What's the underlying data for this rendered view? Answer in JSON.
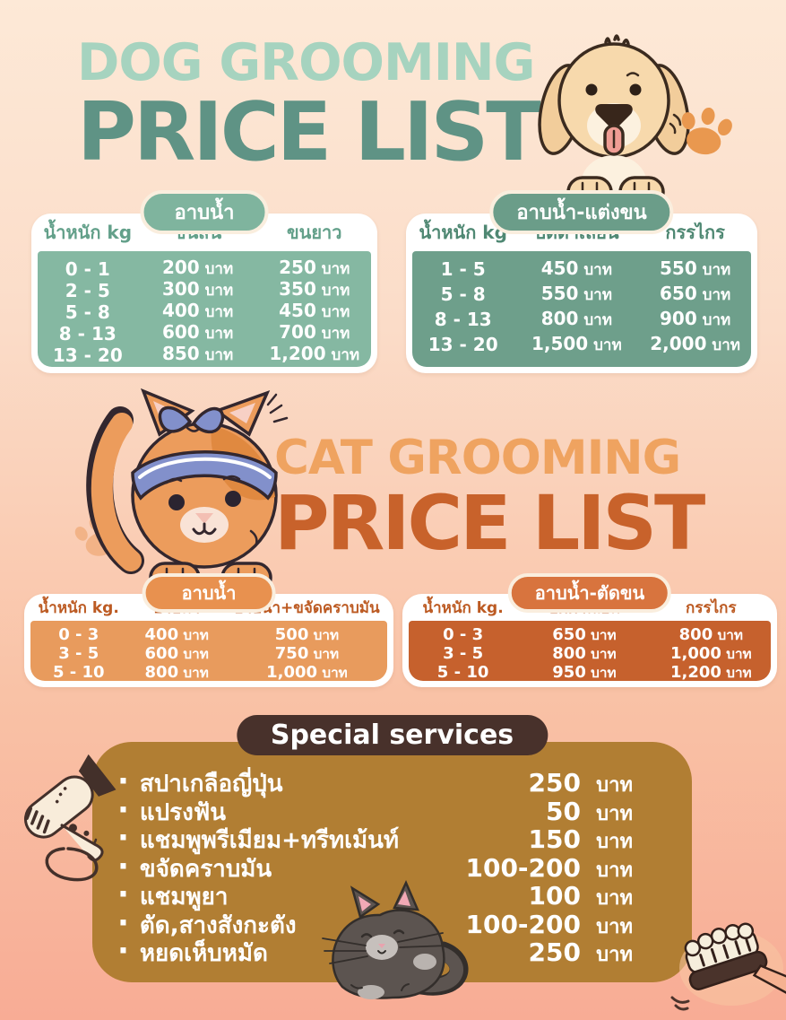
{
  "dog": {
    "title_line1": "DOG GROOMING",
    "title_line2": "PRICE LIST",
    "tables": [
      {
        "badge": "อาบน้ำ",
        "headers": [
          "น้ำหนัก kg",
          "ขนสั้น",
          "ขนยาว"
        ],
        "rows": [
          [
            "0 - 1",
            "200 บาท",
            "250 บาท"
          ],
          [
            "2 - 5",
            "300 บาท",
            "350 บาท"
          ],
          [
            "5 - 8",
            "400 บาท",
            "450 บาท"
          ],
          [
            "8 - 13",
            "600 บาท",
            "700 บาท"
          ],
          [
            "13 - 20",
            "850 บาท",
            "1,200 บาท"
          ]
        ]
      },
      {
        "badge": "อาบน้ำ-แต่งขน",
        "headers": [
          "น้ำหนัก kg",
          "ปัตตาเลี่ยน",
          "กรรไกร"
        ],
        "rows": [
          [
            "1 - 5",
            "450 บาท",
            "550 บาท"
          ],
          [
            "5 - 8",
            "550 บาท",
            "650 บาท"
          ],
          [
            "8 - 13",
            "800 บาท",
            "900 บาท"
          ],
          [
            "13 - 20",
            "1,500 บาท",
            "2,000 บาท"
          ]
        ]
      }
    ]
  },
  "cat": {
    "title_line1": "CAT GROOMING",
    "title_line2": "PRICE LIST",
    "tables": [
      {
        "badge": "อาบน้ำ",
        "headers": [
          "น้ำหนัก kg.",
          "อาบน้ำ",
          "อาบน้ำ+ขจัดคราบมัน"
        ],
        "rows": [
          [
            "0 - 3",
            "400 บาท",
            "500 บาท"
          ],
          [
            "3 - 5",
            "600 บาท",
            "750 บาท"
          ],
          [
            "5 - 10",
            "800 บาท",
            "1,000 บาท"
          ]
        ]
      },
      {
        "badge": "อาบน้ำ-ตัดขน",
        "headers": [
          "น้ำหนัก kg.",
          "ปัตตาเลี่ยน",
          "กรรไกร"
        ],
        "rows": [
          [
            "0 - 3",
            "650 บาท",
            "800 บาท"
          ],
          [
            "3 - 5",
            "800 บาท",
            "1,000 บาท"
          ],
          [
            "5 - 10",
            "950 บาท",
            "1,200 บาท"
          ]
        ]
      }
    ]
  },
  "services": {
    "badge": "Special services",
    "items": [
      {
        "label": "สปาเกลือญี่ปุ่น",
        "price": "250",
        "unit": "บาท"
      },
      {
        "label": "แปรงฟัน",
        "price": "50",
        "unit": "บาท"
      },
      {
        "label": "แชมพูพรีเมียม+ทรีทเม้นท์",
        "price": "150",
        "unit": "บาท"
      },
      {
        "label": "ขจัดคราบมัน",
        "price": "100-200",
        "unit": "บาท"
      },
      {
        "label": "แชมพูยา",
        "price": "100",
        "unit": "บาท"
      },
      {
        "label": "ตัด,สางสังกะตัง",
        "price": "100-200",
        "unit": "บาท"
      },
      {
        "label": "หยดเห็บหมัด",
        "price": "250",
        "unit": "บาท"
      }
    ]
  },
  "icons": {
    "dog_illustration": "puppy-with-paws",
    "dog_paw_print": "orange-paw-print",
    "cat_illustration": "orange-cat-with-bandana",
    "cat_paw_print": "light-orange-paw-print",
    "hair_dryer": "hair-dryer-with-cord",
    "sleeping_cat": "gray-loaf-cat",
    "brush": "pet-grooming-brush"
  },
  "colors": {
    "background_top": "#FDE9D7",
    "background_bottom": "#F8AC95",
    "mint_title": "#A6D3BF",
    "teal_title": "#5F9385",
    "teal_light": "#85B8A2",
    "teal_dark": "#6E9F8B",
    "orange_title_light": "#EFA360",
    "orange_title_dark": "#C8622B",
    "orange_light": "#E89B5D",
    "orange_dark": "#C6612D",
    "services_panel": "#B17E33",
    "services_badge": "#48312B"
  }
}
